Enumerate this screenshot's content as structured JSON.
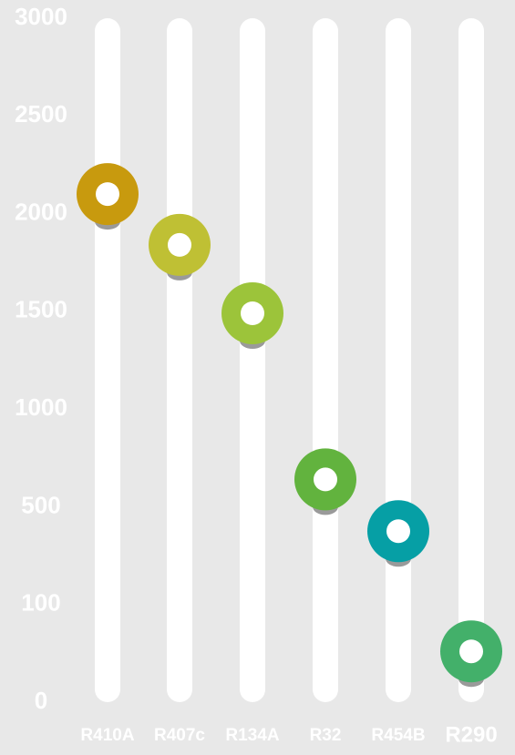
{
  "chart_data": {
    "type": "lollipop",
    "categories": [
      "R410A",
      "R407c",
      "R134A",
      "R32",
      "R454B",
      "R290"
    ],
    "values": [
      2100,
      1840,
      1490,
      640,
      400,
      52
    ],
    "colors": [
      "#c89a0e",
      "#bfc034",
      "#9cc43a",
      "#62b33e",
      "#069fa5",
      "#43b06a"
    ],
    "ylim": [
      0,
      3000
    ],
    "yticks": [
      3000,
      2500,
      2000,
      1500,
      1000,
      500,
      100,
      0
    ]
  }
}
